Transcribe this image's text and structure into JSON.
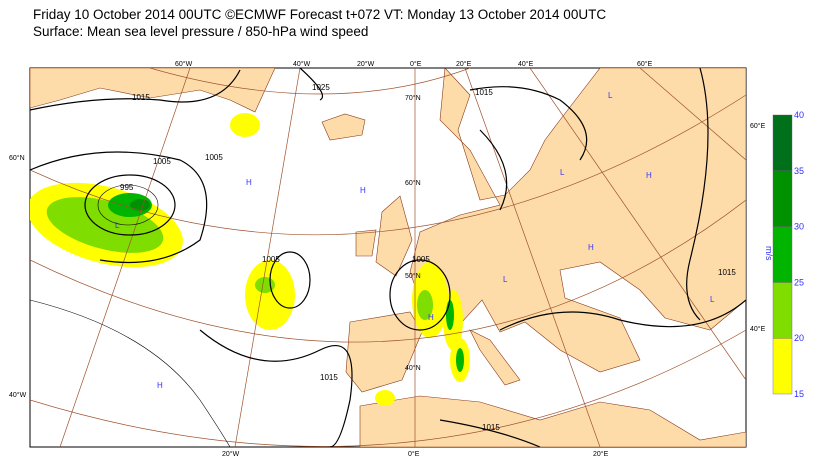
{
  "header": {
    "title_line1": "Friday 10 October 2014 00UTC ©ECMWF Forecast t+072 VT: Monday 13 October 2014 00UTC",
    "title_line2": "Surface: Mean sea level pressure / 850-hPa wind speed"
  },
  "map": {
    "colors": {
      "land": "#fddcaa",
      "sea": "#ffffff",
      "graticule": "#a0522d",
      "isobar": "#000000",
      "coast": "#8b3a1a"
    },
    "graticule_labels": {
      "top": [
        "60°W",
        "40°W",
        "20°W",
        "0°E",
        "20°E",
        "40°E",
        "60°E"
      ],
      "bottom": [
        "20°W",
        "0°E",
        "20°E"
      ],
      "left": [
        "60°N",
        "40°W"
      ],
      "right": [
        "60°E",
        "40°E"
      ],
      "interior": [
        "70°N",
        "60°N",
        "50°N",
        "40°N"
      ]
    },
    "isobar_labels": [
      "1015",
      "1025",
      "1005",
      "995",
      "1005",
      "1005",
      "1015",
      "1015",
      "1005",
      "1015",
      "1015"
    ],
    "pressure_centers": [
      "H",
      "H",
      "L",
      "H",
      "L",
      "L",
      "H",
      "H",
      "L",
      "L",
      "H"
    ]
  },
  "colorbar": {
    "unit": "m/s",
    "ticks": [
      "15",
      "20",
      "25",
      "30",
      "35",
      "40"
    ],
    "colors": [
      "#ffff00",
      "#7fdd00",
      "#00b400",
      "#009100",
      "#00701a"
    ]
  }
}
